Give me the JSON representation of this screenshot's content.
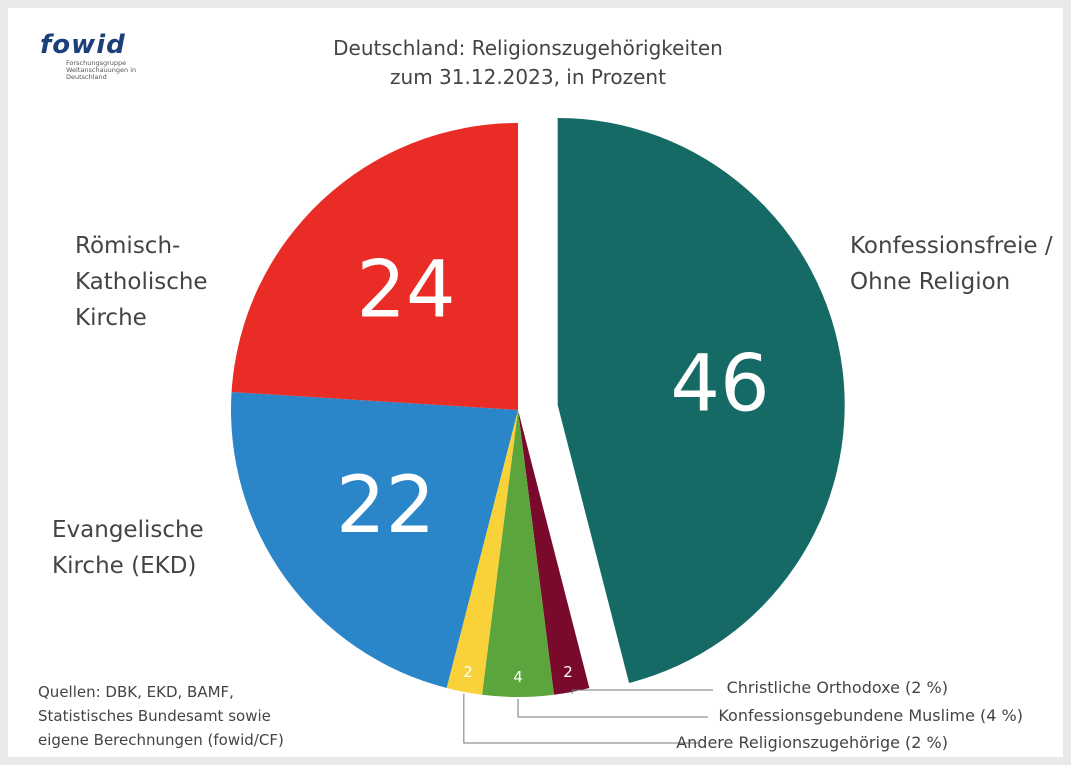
{
  "logo": {
    "name": "fowid",
    "subtitle": "Forschungsgruppe Weltanschauungen in Deutschland"
  },
  "source": "Quellen: DBK, EKD, BAMF, Statistisches Bundesamt sowie eigene Berechnungen (fowid/CF)",
  "chart_data": {
    "type": "pie",
    "title": "Deutschland: Religionszugehörigkeiten zum 31.12.2023, in Prozent",
    "categories": [
      "Konfessionsfreie / Ohne Religion",
      "Christliche Orthodoxe (2 %)",
      "Konfessionsgebundene Muslime (4 %)",
      "Andere Religionszugehörige (2 %)",
      "Evangelische Kirche (EKD)",
      "Römisch-Katholische Kirche"
    ],
    "values": [
      46,
      2,
      4,
      2,
      22,
      24
    ],
    "colors": [
      "#166a66",
      "#7a0a2c",
      "#5ca43c",
      "#f9d23a",
      "#2a86c9",
      "#e92c25"
    ],
    "exploded": [
      true,
      false,
      false,
      false,
      false,
      false
    ]
  }
}
